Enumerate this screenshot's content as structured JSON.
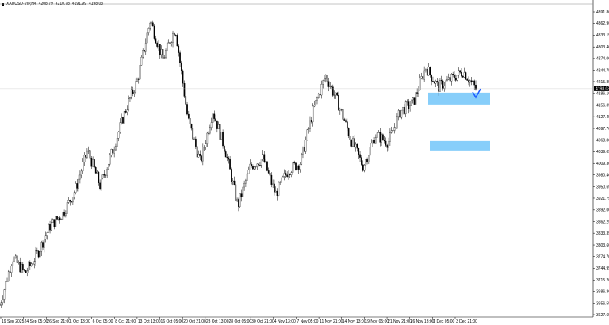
{
  "header": {
    "symbol": "XAUUSD-VIP,H4",
    "open": "4208.79",
    "high": "4210.78",
    "low": "4191.99",
    "close": "4198.03"
  },
  "chart_data": {
    "type": "candlestick",
    "title": "XAUUSD-VIP,H4",
    "ylim": [
      3627.65,
      4391.8
    ],
    "y_ticks": [
      "4391.80",
      "4362.90",
      "4333.15",
      "4303.40",
      "4274.00",
      "4244.75",
      "4215.85",
      "4186.10",
      "4156.35",
      "4127.45",
      "4097.70",
      "4068.80",
      "4039.05",
      "4009.30",
      "3980.40",
      "3950.65",
      "3921.75",
      "3892.00",
      "3862.25",
      "3833.35",
      "3803.60",
      "3774.70",
      "3744.95",
      "3715.20",
      "3686.30",
      "3656.55",
      "3627.65"
    ],
    "x_ticks": [
      "19 Sep 2025",
      "24 Sep 05:00",
      "26 Sep 21:00",
      "1 Oct 13:00",
      "6 Oct 05:00",
      "8 Oct 21:00",
      "13 Oct 13:00",
      "16 Oct 05:00",
      "20 Oct 21:00",
      "23 Oct 13:00",
      "28 Oct 05:00",
      "30 Oct 21:00",
      "4 Nov 13:00",
      "7 Nov 05:00",
      "11 Nov 21:00",
      "14 Nov 13:00",
      "19 Nov 05:00",
      "21 Nov 21:00",
      "26 Nov 13:00",
      "1 Dec 05:00",
      "3 Dec 21:00"
    ],
    "current_price": "4198.03",
    "price_path": [
      3652,
      3772,
      3732,
      3782,
      3852,
      3882,
      3942,
      4042,
      3952,
      4042,
      4142,
      4222,
      4372,
      4272,
      4352,
      4122,
      4012,
      4142,
      4042,
      3902,
      4002,
      4022,
      3932,
      3992,
      4012,
      4142,
      4232,
      4162,
      4072,
      4002,
      4082,
      4062,
      4142,
      4162,
      4252,
      4202,
      4222,
      4242,
      4198
    ],
    "zones": [
      {
        "from": 4158,
        "to": 4188
      },
      {
        "from": 4042,
        "to": 4066
      }
    ],
    "zone_color": "#87cefa",
    "marker_color": "#1e5cff"
  }
}
